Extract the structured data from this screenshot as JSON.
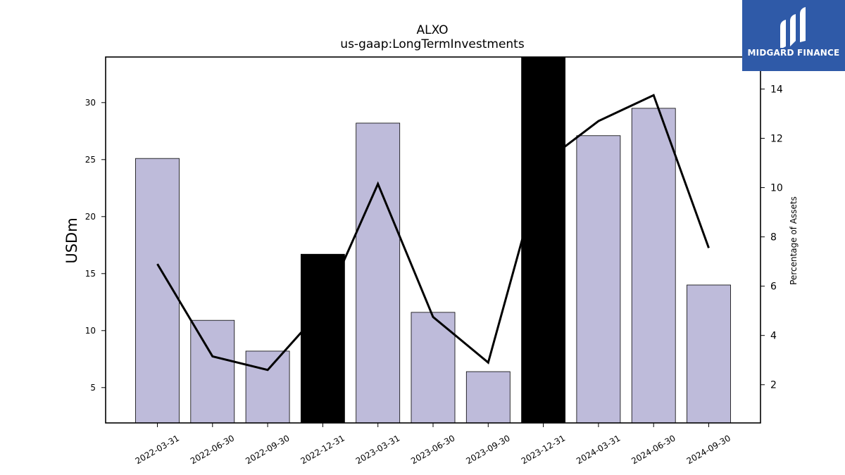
{
  "chart_data": {
    "type": "bar",
    "title": "ALXO",
    "subtitle": "us-gaap:LongTermInvestments",
    "ylabel": "USDm",
    "y2label": "Percentage of Assets",
    "categories": [
      "2022-03-31",
      "2022-06-30",
      "2022-09-30",
      "2022-12-31",
      "2023-03-31",
      "2023-06-30",
      "2023-09-30",
      "2023-12-31",
      "2024-03-31",
      "2024-06-30",
      "2024-09-30"
    ],
    "series": [
      {
        "kind": "bar",
        "axis": "left",
        "values": [
          25.1,
          10.9,
          8.2,
          16.7,
          28.2,
          11.6,
          6.4,
          34.0,
          27.1,
          29.5,
          14.0
        ],
        "colors": [
          "#bebbda",
          "#bebbda",
          "#bebbda",
          "#000000",
          "#bebbda",
          "#bebbda",
          "#bebbda",
          "#000000",
          "#bebbda",
          "#bebbda",
          "#bebbda"
        ]
      },
      {
        "kind": "line",
        "axis": "right",
        "color": "#000000",
        "values": [
          6.9,
          3.15,
          2.6,
          5.1,
          10.15,
          4.75,
          2.9,
          11.0,
          12.7,
          13.75,
          7.55
        ]
      }
    ],
    "ylim": [
      1.9,
      34.0
    ],
    "y2lim": [
      0.45,
      15.3
    ],
    "yticks": [
      5,
      10,
      15,
      20,
      25,
      30
    ],
    "y2ticks": [
      2,
      4,
      6,
      8,
      10,
      12,
      14
    ],
    "grid": false,
    "legend": "none"
  },
  "logo": {
    "text": "MIDGARD FINANCE",
    "bg_color": "#2f5aa8"
  }
}
